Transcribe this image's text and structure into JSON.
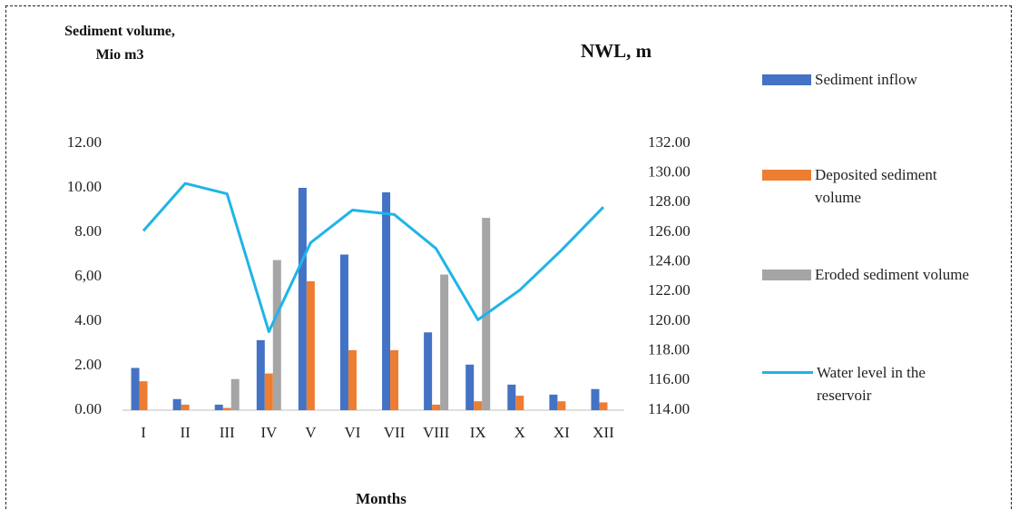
{
  "chart_data": {
    "type": "bar",
    "y_label": "Sediment volume,  Mio m3",
    "y2_label": "NWL, m",
    "x_label": "Months",
    "categories": [
      "I",
      "II",
      "III",
      "IV",
      "V",
      "VI",
      "VII",
      "VIII",
      "IX",
      "X",
      "XI",
      "XII"
    ],
    "series": [
      {
        "name": "Sediment inflow",
        "type": "bar",
        "color": "#4472c4",
        "values": [
          1.9,
          0.5,
          0.25,
          3.15,
          10.0,
          7.0,
          9.8,
          3.5,
          2.05,
          1.15,
          0.7,
          0.95
        ]
      },
      {
        "name": "Deposited sediment volume",
        "type": "bar",
        "color": "#ed7d31",
        "values": [
          1.3,
          0.25,
          0.1,
          1.65,
          5.8,
          2.7,
          2.7,
          0.25,
          0.4,
          0.65,
          0.4,
          0.35
        ]
      },
      {
        "name": "Eroded sediment volume",
        "type": "bar",
        "color": "#a5a5a5",
        "values": [
          0,
          0,
          1.4,
          6.75,
          0,
          0,
          0,
          6.1,
          8.65,
          0,
          0,
          0
        ]
      },
      {
        "name": "Water level in the reservoir",
        "type": "line",
        "axis": "y2",
        "color": "#1fb4e8",
        "values": [
          126.1,
          129.3,
          128.6,
          119.3,
          125.3,
          127.5,
          127.2,
          124.9,
          120.1,
          122.1,
          124.8,
          127.7
        ]
      }
    ],
    "ylim": [
      0,
      12
    ],
    "yticks": [
      {
        "value": 0,
        "label": "0.00"
      },
      {
        "value": 2,
        "label": "2.00"
      },
      {
        "value": 4,
        "label": "4.00"
      },
      {
        "value": 6,
        "label": "6,00"
      },
      {
        "value": 8,
        "label": "8.00"
      },
      {
        "value": 10,
        "label": "10.00"
      },
      {
        "value": 12,
        "label": "12.00"
      }
    ],
    "y2lim": [
      114,
      132
    ],
    "y2ticks": [
      {
        "value": 114,
        "label": "114.00"
      },
      {
        "value": 116,
        "label": "116.00"
      },
      {
        "value": 118,
        "label": "118.00"
      },
      {
        "value": 120,
        "label": "120.00"
      },
      {
        "value": 122,
        "label": "122.00"
      },
      {
        "value": 124,
        "label": "124.00"
      },
      {
        "value": 126,
        "label": "126.00"
      },
      {
        "value": 128,
        "label": "128.00"
      },
      {
        "value": 130,
        "label": "130.00"
      },
      {
        "value": 132,
        "label": "132.00"
      }
    ],
    "grid": false
  }
}
